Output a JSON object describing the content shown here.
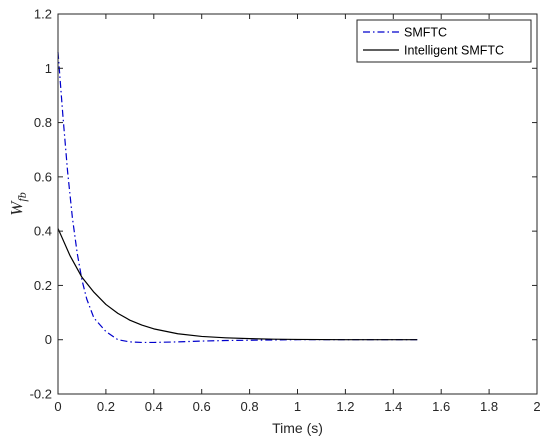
{
  "chart_data": {
    "type": "line",
    "title": "",
    "xlabel": "Time (s)",
    "ylabel_main": "W",
    "ylabel_sub": "fb",
    "xlim": [
      0,
      2
    ],
    "ylim": [
      -0.2,
      1.2
    ],
    "xticks": [
      0,
      0.2,
      0.4,
      0.6,
      0.8,
      1,
      1.2,
      1.4,
      1.6,
      1.8,
      2
    ],
    "xtick_labels": [
      "0",
      "0.2",
      "0.4",
      "0.6",
      "0.8",
      "1",
      "1.2",
      "1.4",
      "1.6",
      "1.8",
      "2"
    ],
    "yticks": [
      -0.2,
      0,
      0.2,
      0.4,
      0.6,
      0.8,
      1,
      1.2
    ],
    "ytick_labels": [
      "-0.2",
      "0",
      "0.2",
      "0.4",
      "0.6",
      "0.8",
      "1",
      "1.2"
    ],
    "grid": false,
    "legend_position": "top-right",
    "series": [
      {
        "name": "SMFTC",
        "color": "#0000cc",
        "line_style": "dash-dot",
        "x": [
          0,
          0.02,
          0.04,
          0.06,
          0.08,
          0.1,
          0.12,
          0.15,
          0.2,
          0.25,
          0.3,
          0.35,
          0.4,
          0.5,
          0.6,
          0.7,
          0.8,
          0.9,
          1.0,
          1.2,
          1.5
        ],
        "y": [
          1.06,
          0.83,
          0.62,
          0.45,
          0.32,
          0.22,
          0.15,
          0.08,
          0.03,
          0.0,
          -0.008,
          -0.01,
          -0.01,
          -0.008,
          -0.005,
          -0.003,
          -0.002,
          -0.001,
          0.0,
          0.0,
          0.0
        ]
      },
      {
        "name": "Intelligent SMFTC",
        "color": "#000000",
        "line_style": "solid",
        "x": [
          0,
          0.05,
          0.1,
          0.15,
          0.2,
          0.25,
          0.3,
          0.35,
          0.4,
          0.5,
          0.6,
          0.7,
          0.8,
          0.9,
          1.0,
          1.2,
          1.5
        ],
        "y": [
          0.41,
          0.31,
          0.23,
          0.175,
          0.13,
          0.097,
          0.072,
          0.054,
          0.04,
          0.022,
          0.012,
          0.007,
          0.004,
          0.002,
          0.001,
          0.0,
          0.0
        ]
      }
    ]
  }
}
